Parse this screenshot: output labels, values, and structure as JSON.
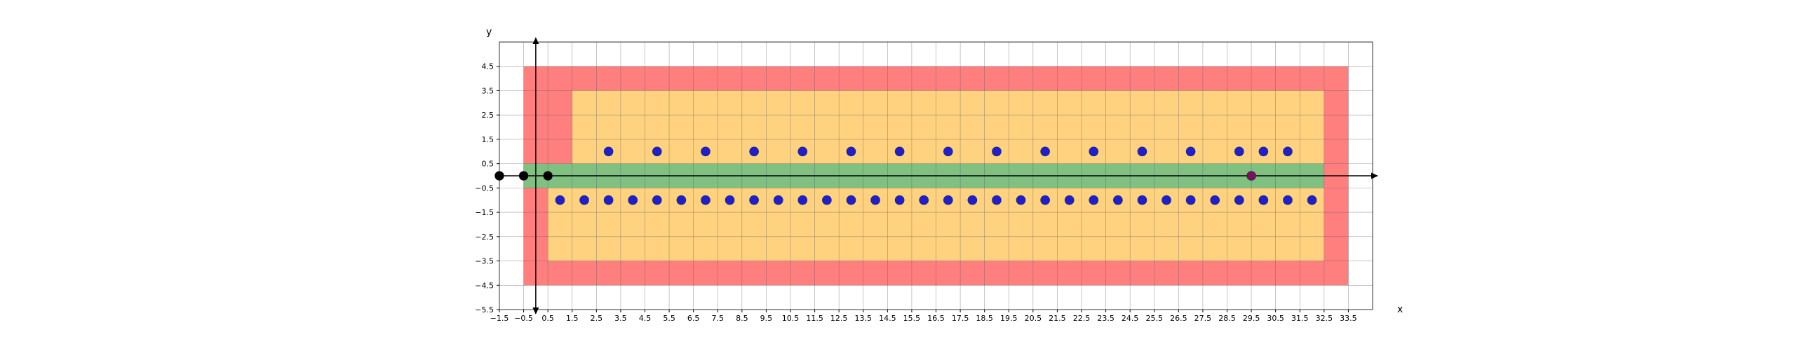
{
  "chart_data": {
    "type": "scatter",
    "title": "",
    "xlabel": "x",
    "ylabel": "y",
    "xlim": [
      -1.5,
      34.5
    ],
    "ylim": [
      -5.5,
      5.5
    ],
    "grid": true,
    "x_ticks": [
      -1.5,
      -0.5,
      0.5,
      1.5,
      2.5,
      3.5,
      4.5,
      5.5,
      6.5,
      7.5,
      8.5,
      9.5,
      10.5,
      11.5,
      12.5,
      13.5,
      14.5,
      15.5,
      16.5,
      17.5,
      18.5,
      19.5,
      20.5,
      21.5,
      22.5,
      23.5,
      24.5,
      25.5,
      26.5,
      27.5,
      28.5,
      29.5,
      30.5,
      31.5,
      32.5,
      33.5
    ],
    "x_tick_labels": [
      "−1.5",
      "−0.5",
      "0.5",
      "1.5",
      "2.5",
      "3.5",
      "4.5",
      "5.5",
      "6.5",
      "7.5",
      "8.5",
      "9.5",
      "10.5",
      "11.5",
      "12.5",
      "13.5",
      "14.5",
      "15.5",
      "16.5",
      "17.5",
      "18.5",
      "19.5",
      "20.5",
      "21.5",
      "22.5",
      "23.5",
      "24.5",
      "25.5",
      "26.5",
      "27.5",
      "28.5",
      "29.5",
      "30.5",
      "31.5",
      "32.5",
      "33.5"
    ],
    "y_ticks": [
      4.5,
      3.5,
      2.5,
      1.5,
      0.5,
      -0.5,
      -1.5,
      -2.5,
      -3.5,
      -4.5,
      -5.5
    ],
    "y_tick_labels": [
      "4.5",
      "3.5",
      "2.5",
      "1.5",
      "0.5",
      "−0.5",
      "−1.5",
      "−2.5",
      "−3.5",
      "−4.5",
      "−5.5"
    ],
    "regions": [
      {
        "name": "red-region",
        "color": "#ff7f7f",
        "x0": -0.5,
        "x1": 33.5,
        "y0": -4.5,
        "y1": 4.5
      },
      {
        "name": "orange-upper-region",
        "color": "#ffd280",
        "x0": 1.5,
        "x1": 32.5,
        "y0": 0.5,
        "y1": 3.5
      },
      {
        "name": "orange-lower-region",
        "color": "#ffd280",
        "x0": 0.5,
        "x1": 32.5,
        "y0": -3.5,
        "y1": -0.5
      },
      {
        "name": "green-band",
        "color": "#80c080",
        "x0": -0.5,
        "x1": 32.5,
        "y0": -0.5,
        "y1": 0.5
      }
    ],
    "series": [
      {
        "color": "#1f1fd0",
        "points": [
          [
            3,
            1
          ],
          [
            5,
            1
          ],
          [
            7,
            1
          ],
          [
            9,
            1
          ],
          [
            11,
            1
          ],
          [
            13,
            1
          ],
          [
            15,
            1
          ],
          [
            17,
            1
          ],
          [
            19,
            1
          ],
          [
            21,
            1
          ],
          [
            23,
            1
          ],
          [
            25,
            1
          ],
          [
            27,
            1
          ],
          [
            29,
            1
          ],
          [
            30,
            1
          ],
          [
            31,
            1
          ],
          [
            1,
            -1
          ],
          [
            2,
            -1
          ],
          [
            3,
            -1
          ],
          [
            4,
            -1
          ],
          [
            5,
            -1
          ],
          [
            6,
            -1
          ],
          [
            7,
            -1
          ],
          [
            8,
            -1
          ],
          [
            9,
            -1
          ],
          [
            10,
            -1
          ],
          [
            11,
            -1
          ],
          [
            12,
            -1
          ],
          [
            13,
            -1
          ],
          [
            14,
            -1
          ],
          [
            15,
            -1
          ],
          [
            16,
            -1
          ],
          [
            17,
            -1
          ],
          [
            18,
            -1
          ],
          [
            19,
            -1
          ],
          [
            20,
            -1
          ],
          [
            21,
            -1
          ],
          [
            22,
            -1
          ],
          [
            23,
            -1
          ],
          [
            24,
            -1
          ],
          [
            25,
            -1
          ],
          [
            26,
            -1
          ],
          [
            27,
            -1
          ],
          [
            28,
            -1
          ],
          [
            29,
            -1
          ],
          [
            30,
            -1
          ],
          [
            31,
            -1
          ],
          [
            32,
            -1
          ]
        ]
      },
      {
        "color": "#000000",
        "points": [
          [
            -1.5,
            0
          ],
          [
            -0.5,
            0
          ],
          [
            0.5,
            0
          ]
        ]
      },
      {
        "color": "#7a1060",
        "points": [
          [
            29.5,
            0
          ]
        ]
      }
    ]
  }
}
